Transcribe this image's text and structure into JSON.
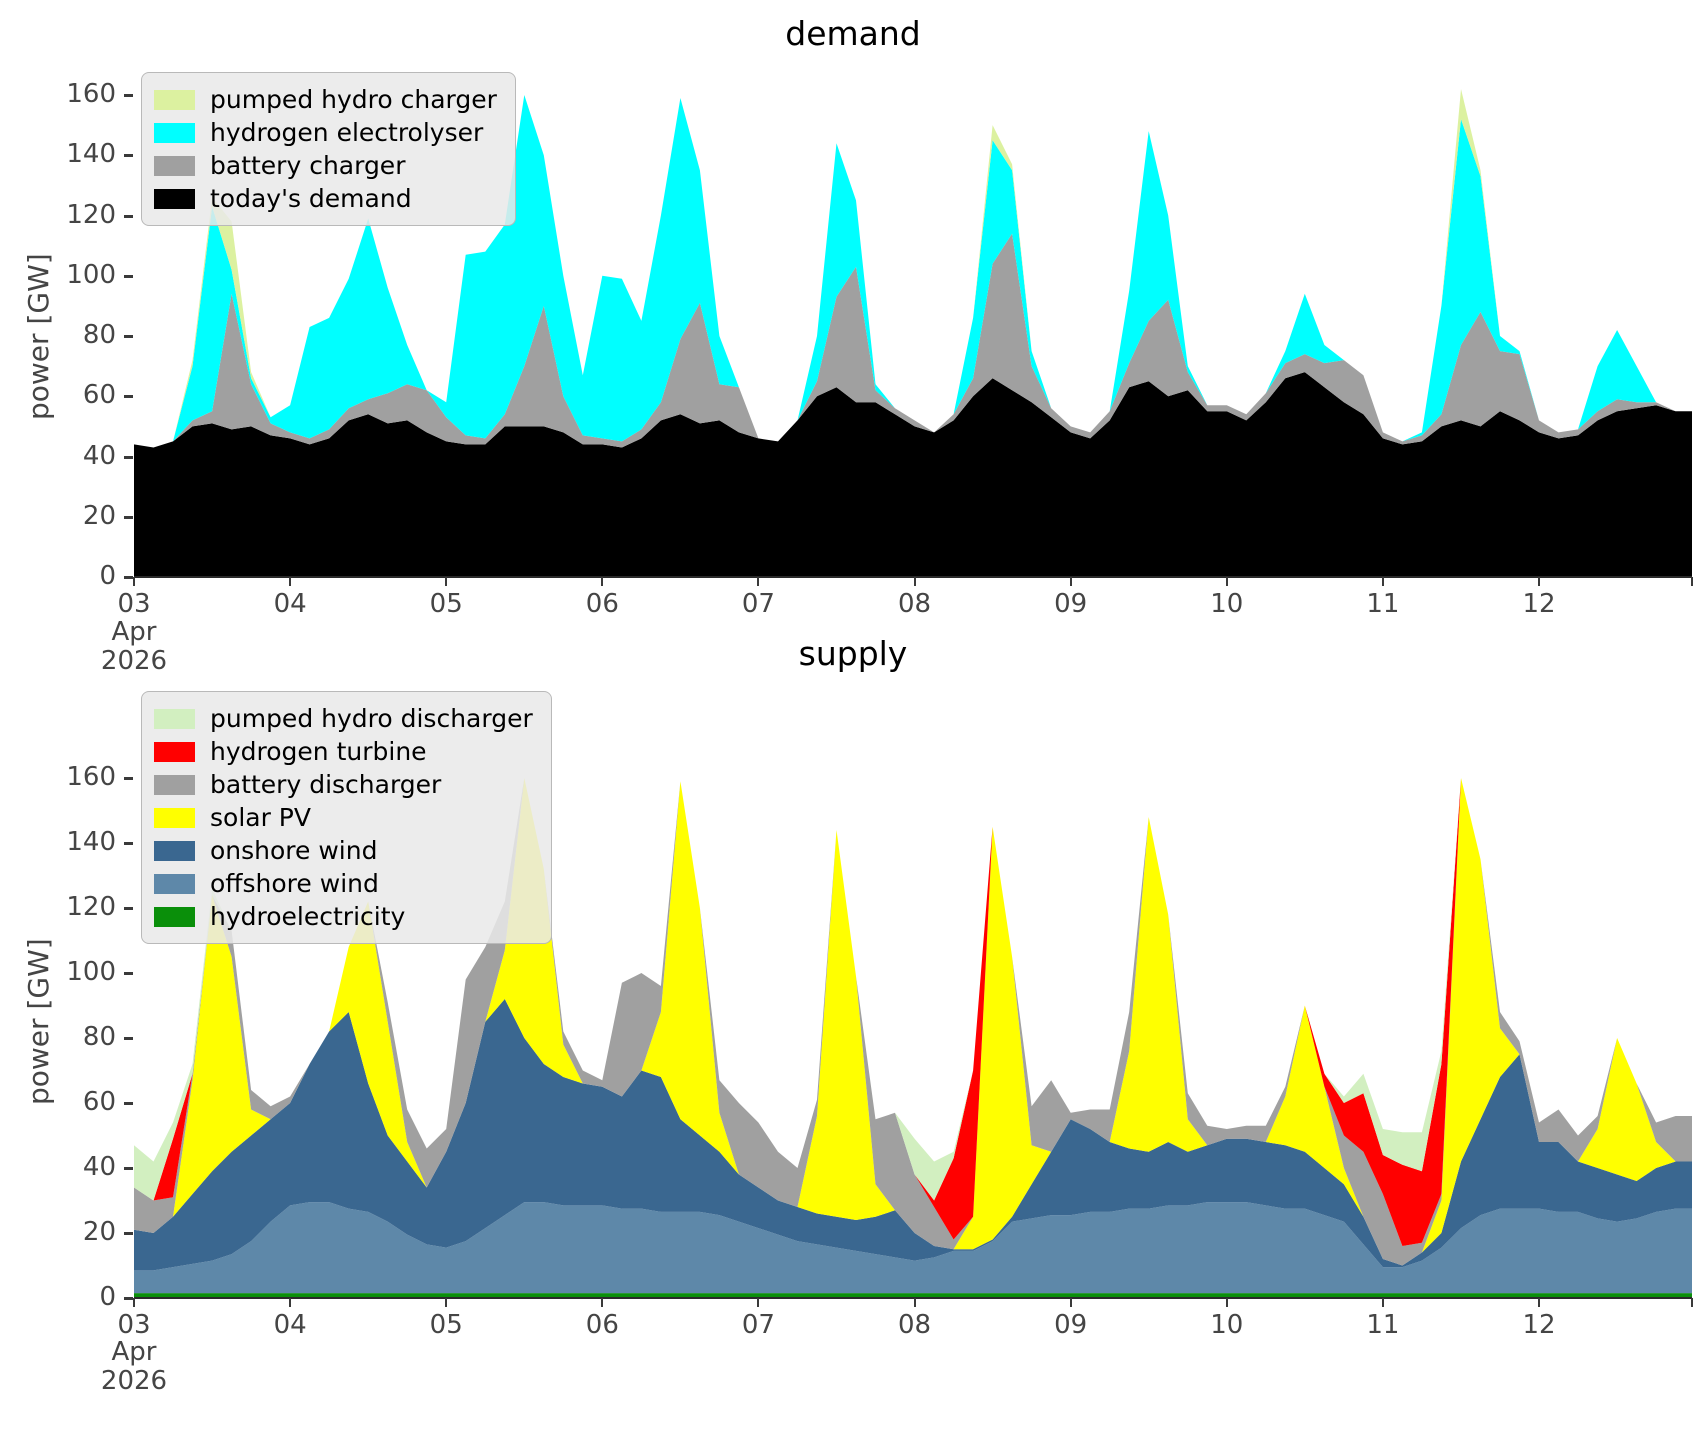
{
  "chart_data": [
    {
      "type": "area",
      "stacked": true,
      "title": "demand",
      "ylabel": "power [GW]",
      "grid": false,
      "legend_position": "upper left",
      "x_start_day": 3.0,
      "x_step_days": 0.125,
      "xlim_days": [
        3.0,
        12.98
      ],
      "ylim": [
        0,
        173
      ],
      "x_tick_days": [
        3,
        4,
        5,
        6,
        7,
        8,
        9,
        10,
        11,
        12
      ],
      "xticklabels": [
        "03",
        "04",
        "05",
        "06",
        "07",
        "08",
        "09",
        "10",
        "11",
        "12"
      ],
      "x_period_label_1": "Apr",
      "x_period_label_2": "2026",
      "yticks": [
        0,
        20,
        40,
        60,
        80,
        100,
        120,
        140,
        160
      ],
      "yticklabels": [
        "0",
        "20",
        "40",
        "60",
        "80",
        "100",
        "120",
        "140",
        "160"
      ],
      "series": [
        {
          "name": "today's demand",
          "color": "#000000",
          "values": [
            44,
            43,
            45,
            50,
            51,
            49,
            50,
            47,
            46,
            44,
            46,
            52,
            54,
            51,
            52,
            48,
            45,
            44,
            44,
            50,
            50,
            50,
            48,
            44,
            44,
            43,
            46,
            52,
            54,
            51,
            52,
            48,
            46,
            45,
            52,
            60,
            63,
            58,
            58,
            54,
            50,
            48,
            52,
            60,
            66,
            62,
            58,
            53,
            48,
            46,
            52,
            63,
            65,
            60,
            62,
            55,
            55,
            52,
            58,
            66,
            68,
            63,
            58,
            54,
            46,
            44,
            45,
            50,
            52,
            50,
            55,
            52,
            48,
            46,
            47,
            52,
            55,
            56,
            57,
            55
          ]
        },
        {
          "name": "battery charger",
          "color": "#a0a0a0",
          "values": [
            0,
            0,
            0,
            2,
            4,
            45,
            14,
            4,
            2,
            2,
            3,
            4,
            5,
            10,
            12,
            14,
            8,
            3,
            2,
            4,
            20,
            40,
            12,
            3,
            2,
            2,
            3,
            6,
            25,
            40,
            12,
            15,
            0,
            0,
            0,
            5,
            30,
            45,
            4,
            2,
            2,
            0,
            2,
            6,
            38,
            52,
            12,
            3,
            2,
            2,
            3,
            8,
            20,
            32,
            6,
            2,
            2,
            2,
            3,
            5,
            6,
            8,
            14,
            13,
            2,
            1,
            2,
            4,
            25,
            38,
            20,
            22,
            4,
            2,
            2,
            3,
            4,
            2,
            1,
            0
          ]
        },
        {
          "name": "hydrogen electrolyser",
          "color": "#00ffff",
          "values": [
            0,
            0,
            0,
            18,
            68,
            8,
            2,
            2,
            9,
            37,
            37,
            43,
            60,
            35,
            13,
            0,
            5,
            60,
            62,
            63,
            90,
            50,
            40,
            20,
            54,
            54,
            36,
            62,
            80,
            44,
            16,
            0,
            0,
            0,
            0,
            15,
            51,
            22,
            2,
            0,
            0,
            0,
            0,
            20,
            41,
            21,
            5,
            0,
            0,
            0,
            0,
            24,
            63,
            28,
            2,
            0,
            0,
            0,
            0,
            4,
            20,
            6,
            0,
            0,
            0,
            0,
            1,
            36,
            75,
            45,
            5,
            1,
            0,
            0,
            0,
            15,
            23,
            12,
            0,
            0
          ]
        },
        {
          "name": "pumped hydro charger",
          "color": "#dcf1a0",
          "values": [
            0,
            0,
            0,
            2,
            3,
            16,
            2,
            0,
            0,
            0,
            0,
            0,
            0,
            0,
            0,
            0,
            0,
            0,
            0,
            0,
            0,
            0,
            0,
            0,
            0,
            0,
            0,
            0,
            0,
            0,
            0,
            0,
            0,
            0,
            0,
            0,
            0,
            0,
            0,
            0,
            0,
            0,
            0,
            0,
            5,
            2,
            0,
            0,
            0,
            0,
            0,
            0,
            0,
            0,
            0,
            0,
            0,
            0,
            0,
            0,
            0,
            0,
            0,
            0,
            0,
            0,
            0,
            0,
            10,
            2,
            0,
            0,
            0,
            0,
            0,
            0,
            0,
            0,
            0,
            0
          ]
        }
      ]
    },
    {
      "type": "area",
      "stacked": true,
      "title": "supply",
      "ylabel": "power [GW]",
      "grid": false,
      "legend_position": "upper left",
      "x_start_day": 3.0,
      "x_step_days": 0.125,
      "xlim_days": [
        3.0,
        12.98
      ],
      "ylim": [
        0,
        182
      ],
      "x_tick_days": [
        3,
        4,
        5,
        6,
        7,
        8,
        9,
        10,
        11,
        12
      ],
      "xticklabels": [
        "03",
        "04",
        "05",
        "06",
        "07",
        "08",
        "09",
        "10",
        "11",
        "12"
      ],
      "x_period_label_1": "Apr",
      "x_period_label_2": "2026",
      "yticks": [
        0,
        20,
        40,
        60,
        80,
        100,
        120,
        140,
        160
      ],
      "yticklabels": [
        "0",
        "20",
        "40",
        "60",
        "80",
        "100",
        "120",
        "140",
        "160"
      ],
      "series": [
        {
          "name": "hydroelectricity",
          "color": "#0a8f0a",
          "values": [
            1.5,
            1.5,
            1.5,
            1.5,
            1.5,
            1.5,
            1.5,
            1.5,
            1.5,
            1.5,
            1.5,
            1.5,
            1.5,
            1.5,
            1.5,
            1.5,
            1.5,
            1.5,
            1.5,
            1.5,
            1.5,
            1.5,
            1.5,
            1.5,
            1.5,
            1.5,
            1.5,
            1.5,
            1.5,
            1.5,
            1.5,
            1.5,
            1.5,
            1.5,
            1.5,
            1.5,
            1.5,
            1.5,
            1.5,
            1.5,
            1.5,
            1.5,
            1.5,
            1.5,
            1.5,
            1.5,
            1.5,
            1.5,
            1.5,
            1.5,
            1.5,
            1.5,
            1.5,
            1.5,
            1.5,
            1.5,
            1.5,
            1.5,
            1.5,
            1.5,
            1.5,
            1.5,
            1.5,
            1.5,
            1.5,
            1.5,
            1.5,
            1.5,
            1.5,
            1.5,
            1.5,
            1.5,
            1.5,
            1.5,
            1.5,
            1.5,
            1.5,
            1.5,
            1.5,
            1.5
          ]
        },
        {
          "name": "offshore wind",
          "color": "#5e88a9",
          "values": [
            7,
            7,
            8,
            9,
            10,
            12,
            16,
            22,
            27,
            28,
            28,
            26,
            25,
            22,
            18,
            15,
            14,
            16,
            20,
            24,
            28,
            28,
            27,
            27,
            27,
            26,
            26,
            25,
            25,
            25,
            24,
            22,
            20,
            18,
            16,
            15,
            14,
            13,
            12,
            11,
            10,
            11,
            13,
            13,
            16,
            22,
            23,
            24,
            24,
            25,
            25,
            26,
            26,
            27,
            27,
            28,
            28,
            28,
            27,
            26,
            26,
            24,
            22,
            15,
            8,
            8,
            10,
            14,
            20,
            24,
            26,
            26,
            26,
            25,
            25,
            23,
            22,
            23,
            25,
            26
          ]
        },
        {
          "name": "onshore wind",
          "color": "#3a6790",
          "values": [
            12.5,
            11.5,
            15.5,
            21.5,
            27.5,
            31.5,
            32.5,
            31.5,
            31.5,
            42.5,
            52.5,
            60.5,
            39.5,
            26.5,
            22.5,
            17.5,
            29.5,
            42.5,
            63.5,
            66.5,
            50.5,
            42.5,
            39.5,
            37.5,
            36.5,
            34.5,
            42.5,
            41.5,
            28.5,
            23.5,
            19.5,
            14.5,
            12.5,
            10.5,
            10.5,
            9.5,
            9.5,
            9.5,
            11.5,
            14.5,
            8.5,
            3.5,
            0.5,
            0.5,
            0.5,
            1.5,
            10.5,
            19.5,
            29.5,
            25.5,
            21.5,
            18.5,
            17.5,
            19.5,
            16.5,
            17.5,
            19.5,
            19.5,
            19.5,
            19.5,
            17.5,
            14.5,
            11.5,
            8.5,
            2.5,
            0.5,
            2.5,
            4.5,
            20.5,
            29.5,
            40.5,
            47.5,
            20.5,
            21.5,
            15.5,
            15.5,
            14.5,
            11.5,
            13.5,
            14.5
          ]
        },
        {
          "name": "solar PV",
          "color": "#ffff00",
          "values": [
            0,
            0,
            0,
            35,
            85,
            60,
            8,
            0,
            0,
            0,
            0,
            20,
            56,
            35,
            6,
            0,
            0,
            0,
            0,
            15,
            80,
            60,
            10,
            0,
            0,
            0,
            0,
            20,
            104,
            70,
            12,
            0,
            0,
            0,
            0,
            30,
            119,
            75,
            10,
            0,
            0,
            0,
            0,
            10,
            127,
            80,
            12,
            0,
            0,
            0,
            0,
            30,
            103,
            70,
            10,
            0,
            0,
            0,
            0,
            15,
            45,
            25,
            5,
            0,
            0,
            0,
            0,
            10,
            118,
            80,
            15,
            0,
            0,
            0,
            0,
            12,
            42,
            30,
            8,
            0
          ]
        },
        {
          "name": "battery discharger",
          "color": "#a0a0a0",
          "values": [
            13,
            10,
            6,
            2,
            0,
            8,
            6,
            4,
            2,
            0,
            0,
            0,
            0,
            6,
            10,
            12,
            7,
            38,
            23,
            15,
            0,
            0,
            4,
            4,
            2,
            35,
            30,
            8,
            0,
            0,
            10,
            22,
            20,
            15,
            12,
            5,
            0,
            0,
            20,
            30,
            18,
            12,
            3,
            0,
            0,
            0,
            12,
            22,
            2,
            6,
            10,
            12,
            0,
            0,
            8,
            6,
            3,
            4,
            5,
            3,
            0,
            0,
            10,
            20,
            20,
            6,
            3,
            2,
            0,
            0,
            5,
            4,
            6,
            10,
            8,
            4,
            0,
            0,
            6,
            14
          ]
        },
        {
          "name": "hydrogen turbine",
          "color": "#ff0000",
          "values": [
            0,
            0,
            18,
            0,
            0,
            0,
            0,
            0,
            0,
            0,
            0,
            0,
            0,
            0,
            0,
            0,
            0,
            0,
            0,
            0,
            0,
            0,
            0,
            0,
            0,
            0,
            0,
            0,
            0,
            0,
            0,
            0,
            0,
            0,
            0,
            0,
            0,
            0,
            0,
            0,
            0,
            2,
            25,
            45,
            0,
            0,
            0,
            0,
            0,
            0,
            0,
            0,
            0,
            0,
            0,
            0,
            0,
            0,
            0,
            0,
            0,
            4,
            10,
            18,
            12,
            25,
            22,
            40,
            0,
            0,
            0,
            0,
            0,
            0,
            0,
            0,
            0,
            0,
            0,
            0
          ]
        },
        {
          "name": "pumped hydro discharger",
          "color": "#d2efc0",
          "values": [
            13,
            12,
            5,
            3,
            2,
            0,
            0,
            0,
            0,
            0,
            0,
            0,
            0,
            0,
            0,
            0,
            0,
            0,
            0,
            0,
            0,
            0,
            0,
            0,
            0,
            0,
            0,
            0,
            0,
            0,
            0,
            0,
            0,
            0,
            0,
            0,
            0,
            0,
            0,
            0,
            11,
            12,
            2,
            0,
            0,
            0,
            0,
            0,
            0,
            0,
            0,
            0,
            0,
            0,
            0,
            0,
            0,
            0,
            0,
            0,
            0,
            0,
            2,
            6,
            8,
            10,
            12,
            4,
            0,
            0,
            0,
            0,
            0,
            0,
            0,
            0,
            0,
            0,
            0,
            0
          ]
        }
      ]
    }
  ]
}
